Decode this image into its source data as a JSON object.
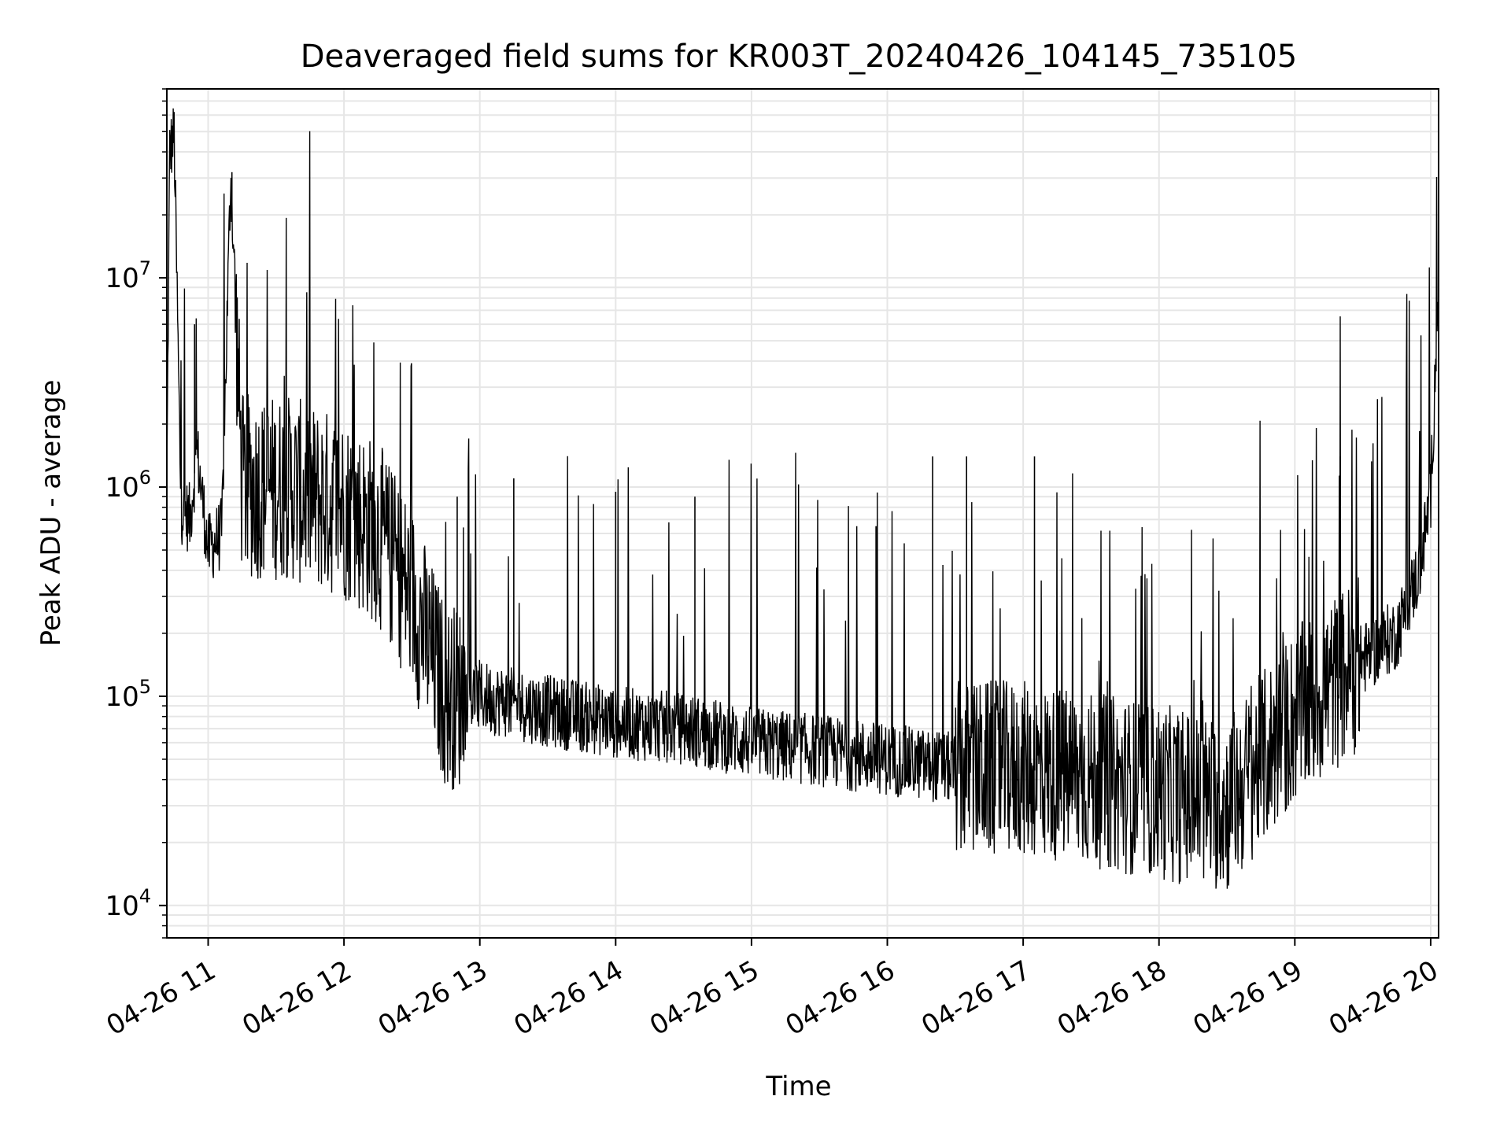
{
  "chart_data": {
    "type": "line",
    "title": "Deaveraged field sums for KR003T_20240426_104145_735105",
    "xlabel": "Time",
    "ylabel": "Peak ADU - average",
    "xlim": [
      "2024-04-26T10:41:45",
      "2024-04-26T20:03:30"
    ],
    "ylim": [
      7000,
      80000000
    ],
    "yscale": "log",
    "grid": true,
    "legend": "none",
    "x_ticks": [
      "04-26 11",
      "04-26 12",
      "04-26 13",
      "04-26 14",
      "04-26 15",
      "04-26 16",
      "04-26 17",
      "04-26 18",
      "04-26 19",
      "04-26 20"
    ],
    "y_ticks": [
      {
        "base": "10",
        "exp": "4",
        "value": 10000
      },
      {
        "base": "10",
        "exp": "5",
        "value": 100000
      },
      {
        "base": "10",
        "exp": "6",
        "value": 1000000
      },
      {
        "base": "10",
        "exp": "7",
        "value": 10000000
      }
    ],
    "line_color": "#000000",
    "series": [
      {
        "x": [
          "2024-04-26T10:41:45",
          "2024-04-26T10:43:00",
          "2024-04-26T10:45:00",
          "2024-04-26T10:48:00",
          "2024-04-26T10:52:00",
          "2024-04-26T10:55:00",
          "2024-04-26T11:00:00",
          "2024-04-26T11:06:00",
          "2024-04-26T11:10:00",
          "2024-04-26T11:15:00",
          "2024-04-26T11:25:00",
          "2024-04-26T11:35:00",
          "2024-04-26T11:45:00",
          "2024-04-26T12:00:00",
          "2024-04-26T12:15:00",
          "2024-04-26T12:30:00",
          "2024-04-26T12:45:00",
          "2024-04-26T13:00:00",
          "2024-04-26T13:30:00",
          "2024-04-26T14:00:00",
          "2024-04-26T14:30:00",
          "2024-04-26T15:00:00",
          "2024-04-26T15:30:00",
          "2024-04-26T16:00:00",
          "2024-04-26T16:30:00",
          "2024-04-26T17:00:00",
          "2024-04-26T17:30:00",
          "2024-04-26T18:00:00",
          "2024-04-26T18:30:00",
          "2024-04-26T19:00:00",
          "2024-04-26T19:30:00",
          "2024-04-26T19:45:00",
          "2024-04-26T19:55:00",
          "2024-04-26T20:00:00",
          "2024-04-26T20:03:00"
        ],
        "y": [
          1000000,
          40000000,
          48000000,
          800000,
          700000,
          1500000,
          500000,
          600000,
          32000000,
          1000000,
          1000000,
          1000000,
          900000,
          800000,
          600000,
          300000,
          100000,
          100000,
          85000,
          75000,
          70000,
          60000,
          55000,
          50000,
          45000,
          45000,
          40000,
          35000,
          30000,
          80000,
          150000,
          200000,
          400000,
          900000,
          7000000
        ]
      }
    ],
    "spike_markers": [
      {
        "x": "2024-04-26T11:10:30",
        "y": 32000000
      },
      {
        "x": "2024-04-26T10:54:00",
        "y": 6000000
      },
      {
        "x": "2024-04-26T12:50:00",
        "y": 900000
      },
      {
        "x": "2024-04-26T13:15:00",
        "y": 1100000
      },
      {
        "x": "2024-04-26T14:00:00",
        "y": 950000
      },
      {
        "x": "2024-04-26T14:35:00",
        "y": 900000
      },
      {
        "x": "2024-04-26T15:55:00",
        "y": 650000
      },
      {
        "x": "2024-04-26T16:20:00",
        "y": 1400000
      },
      {
        "x": "2024-04-26T16:35:00",
        "y": 1400000
      },
      {
        "x": "2024-04-26T17:05:00",
        "y": 1400000
      },
      {
        "x": "2024-04-26T19:20:00",
        "y": 1400000
      },
      {
        "x": "2024-04-26T20:03:00",
        "y": 7000000
      }
    ]
  }
}
